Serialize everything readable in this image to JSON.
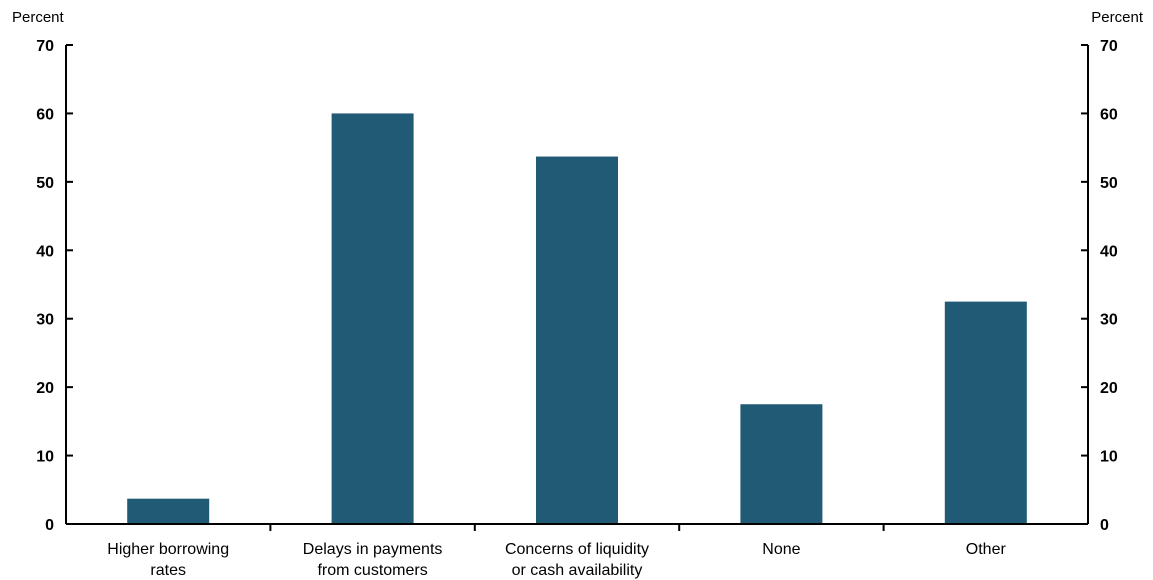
{
  "chart_data": {
    "type": "bar",
    "left_axis_label": "Percent",
    "right_axis_label": "Percent",
    "categories": [
      [
        "Higher borrowing",
        "rates"
      ],
      [
        "Delays in payments",
        "from customers"
      ],
      [
        "Concerns of liquidity",
        "or cash availability"
      ],
      [
        "None"
      ],
      [
        "Other"
      ]
    ],
    "values": [
      3.7,
      60,
      53.7,
      17.5,
      32.5
    ],
    "ylim": [
      0,
      70
    ],
    "yticks": [
      0,
      10,
      20,
      30,
      40,
      50,
      60,
      70
    ],
    "dual_y_axis": true,
    "grid": false,
    "bar_color": "#215a75"
  }
}
